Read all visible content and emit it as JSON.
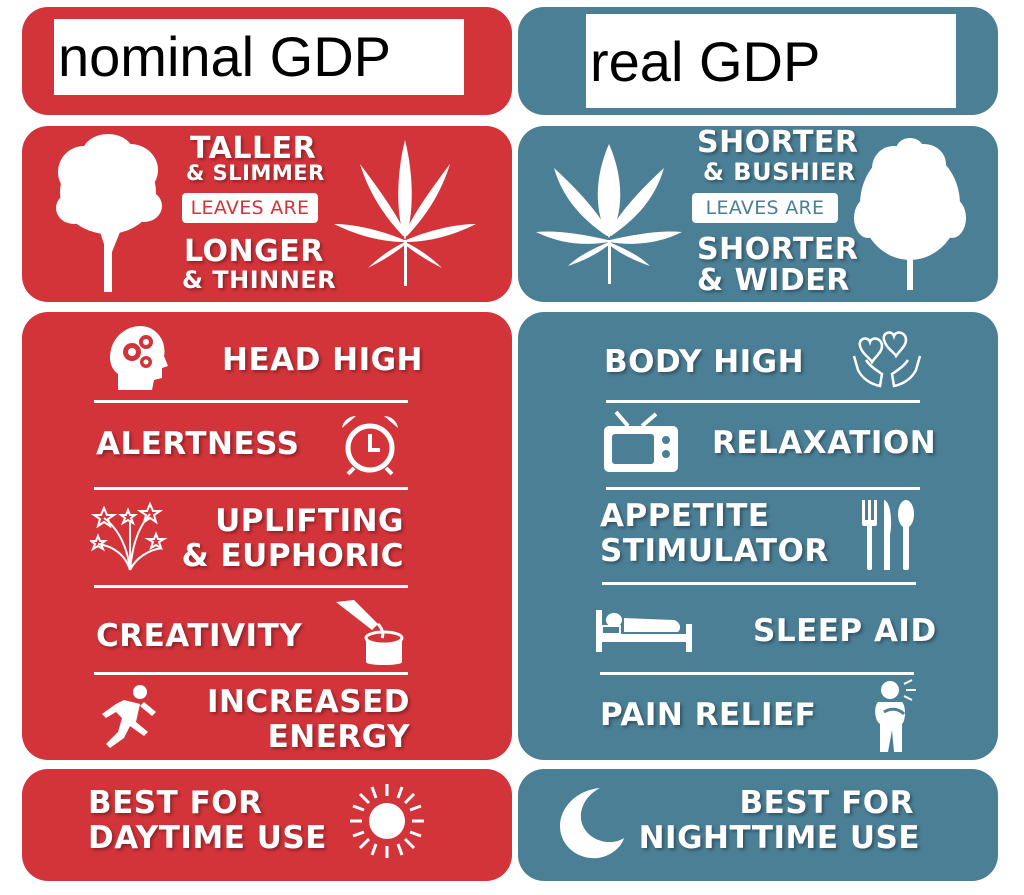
{
  "colors": {
    "red_panel": "#d3343a",
    "blue_panel": "#4b7f96",
    "text": "#ffffff"
  },
  "left": {
    "title": "nominal GDP",
    "leaf_desc": {
      "line1": "TALLER",
      "line2": "& SLIMMER",
      "pill": "LEAVES ARE",
      "line3": "LONGER",
      "line4": "& THINNER"
    },
    "effects": [
      {
        "label": "HEAD HIGH",
        "icon": "head-gears-icon"
      },
      {
        "label": "ALERTNESS",
        "icon": "alarm-clock-icon"
      },
      {
        "label_line1": "UPLIFTING",
        "label_line2": "& EUPHORIC",
        "icon": "fireworks-stars-icon"
      },
      {
        "label": "CREATIVITY",
        "icon": "paint-bucket-icon"
      },
      {
        "label_line1": "INCREASED",
        "label_line2": "ENERGY",
        "icon": "running-person-icon"
      }
    ],
    "best": {
      "line1": "BEST FOR",
      "line2": "DAYTIME USE",
      "icon": "sun-icon"
    }
  },
  "right": {
    "title": "real GDP",
    "leaf_desc": {
      "line1": "SHORTER",
      "line2": "& BUSHIER",
      "pill": "LEAVES ARE",
      "line3": "SHORTER",
      "line4": "& WIDER"
    },
    "effects": [
      {
        "label": "BODY HIGH",
        "icon": "hands-hearts-icon"
      },
      {
        "label": "RELAXATION",
        "icon": "television-icon"
      },
      {
        "label_line1": "APPETITE",
        "label_line2": "STIMULATOR",
        "icon": "cutlery-icon"
      },
      {
        "label": "SLEEP AID",
        "icon": "bed-icon"
      },
      {
        "label": "PAIN RELIEF",
        "icon": "person-in-pain-icon"
      }
    ],
    "best": {
      "line1": "BEST FOR",
      "line2": "NIGHTTIME USE",
      "icon": "crescent-moon-icon"
    }
  }
}
